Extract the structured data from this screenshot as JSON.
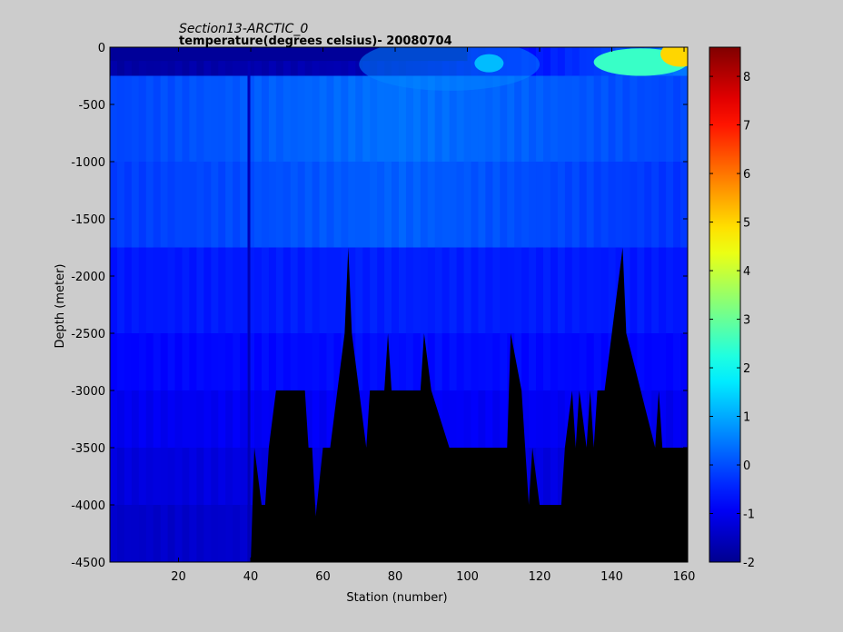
{
  "chart_data": {
    "type": "heatmap",
    "title": "Section13-ARCTIC_0",
    "subtitle": "temperature(degrees  celsius)- 20080704",
    "xlabel": "Station (number)",
    "ylabel": "Depth (meter)",
    "xlim": [
      1,
      161
    ],
    "ylim": [
      -4500,
      0
    ],
    "x_ticks": [
      20,
      40,
      60,
      80,
      100,
      120,
      140,
      160
    ],
    "y_ticks": [
      0,
      -500,
      -1000,
      -1500,
      -2000,
      -2500,
      -3000,
      -3500,
      -4000,
      -4500
    ],
    "colorbar": {
      "range": [
        -2,
        8.6
      ],
      "ticks": [
        -2,
        -1,
        0,
        1,
        2,
        3,
        4,
        5,
        6,
        7,
        8
      ],
      "colormap": "jet",
      "colors": [
        "#00008f",
        "#0000ff",
        "#00ffff",
        "#ffff00",
        "#ff0000",
        "#800000"
      ]
    },
    "bathymetry_color": "#000000",
    "depth_bands": [
      {
        "from": 0,
        "to": -250,
        "description_temps": {
          "west": -1.8,
          "central": -1.6,
          "east": 0.5
        }
      },
      {
        "from": -250,
        "to": -1000,
        "description_temps": {
          "west": -0.1,
          "central": 0.4,
          "east": -0.1
        }
      },
      {
        "from": -1000,
        "to": -1750,
        "description_temps": {
          "west": -0.2,
          "central": 0.2,
          "east": -0.3
        }
      },
      {
        "from": -1750,
        "to": -2500,
        "description_temps": {
          "west": -0.6,
          "central": -0.5,
          "east": -0.6
        }
      },
      {
        "from": -2500,
        "to": -3000,
        "description_temps": {
          "west": -0.8,
          "central": -0.7,
          "east": -0.8
        }
      },
      {
        "from": -3000,
        "to": -3500,
        "description_temps": {
          "west": -1.0,
          "central": -0.9,
          "east": -1.0
        }
      },
      {
        "from": -3500,
        "to": -4000,
        "description_temps": {
          "west": -1.2,
          "central": -1.1,
          "east": -1.2
        }
      },
      {
        "from": -4000,
        "to": -4500,
        "description_temps": {
          "west": -1.4,
          "central": -1.3,
          "east": -1.4
        }
      }
    ],
    "seafloor_depth_by_station": [
      [
        1,
        -4500
      ],
      [
        40,
        -4500
      ],
      [
        41,
        -3500
      ],
      [
        43,
        -4000
      ],
      [
        44,
        -4000
      ],
      [
        45,
        -3500
      ],
      [
        47,
        -3000
      ],
      [
        55,
        -3000
      ],
      [
        56,
        -3500
      ],
      [
        57,
        -3500
      ],
      [
        58,
        -4100
      ],
      [
        60,
        -3500
      ],
      [
        62,
        -3500
      ],
      [
        64,
        -3000
      ],
      [
        66,
        -2500
      ],
      [
        67,
        -1750
      ],
      [
        68,
        -2500
      ],
      [
        70,
        -3000
      ],
      [
        72,
        -3500
      ],
      [
        73,
        -3000
      ],
      [
        77,
        -3000
      ],
      [
        78,
        -2500
      ],
      [
        79,
        -3000
      ],
      [
        87,
        -3000
      ],
      [
        88,
        -2500
      ],
      [
        90,
        -3000
      ],
      [
        95,
        -3500
      ],
      [
        111,
        -3500
      ],
      [
        112,
        -2500
      ],
      [
        115,
        -3000
      ],
      [
        116,
        -3500
      ],
      [
        117,
        -4000
      ],
      [
        118,
        -3500
      ],
      [
        120,
        -4000
      ],
      [
        126,
        -4000
      ],
      [
        127,
        -3500
      ],
      [
        129,
        -3000
      ],
      [
        130,
        -3500
      ],
      [
        131,
        -3000
      ],
      [
        133,
        -3500
      ],
      [
        134,
        -3000
      ],
      [
        135,
        -3500
      ],
      [
        136,
        -3000
      ],
      [
        138,
        -3000
      ],
      [
        140,
        -2500
      ],
      [
        143,
        -1750
      ],
      [
        144,
        -2500
      ],
      [
        148,
        -3000
      ],
      [
        152,
        -3500
      ],
      [
        153,
        -3000
      ],
      [
        154,
        -3500
      ],
      [
        161,
        -3500
      ]
    ],
    "vertical_stripe_station": 39.5
  }
}
